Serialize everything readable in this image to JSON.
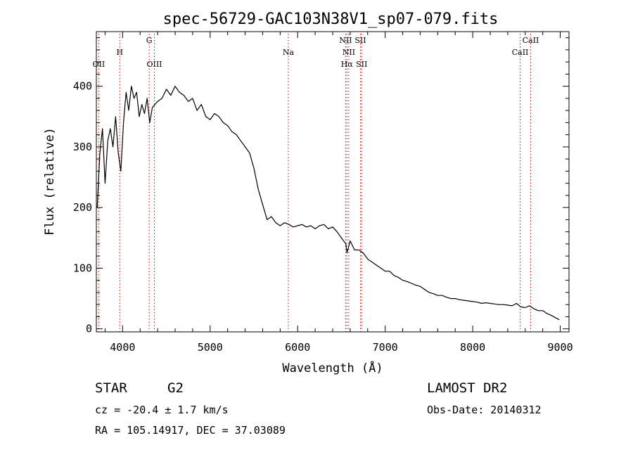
{
  "chart_data": {
    "type": "line",
    "title": "spec-56729-GAC103N38V1_sp07-079.fits",
    "xlabel": "Wavelength (Å)",
    "ylabel": "Flux (relative)",
    "xlim": [
      3700,
      9100
    ],
    "ylim": [
      -5,
      490
    ],
    "xticks": [
      4000,
      5000,
      6000,
      7000,
      8000,
      9000
    ],
    "yticks": [
      0,
      100,
      200,
      300,
      400
    ],
    "grid": false,
    "line_color": "#000000",
    "marker_color": "#cc0000",
    "series": [
      {
        "x": [
          3710,
          3740,
          3770,
          3800,
          3830,
          3860,
          3890,
          3920,
          3950,
          3980,
          4010,
          4040,
          4070,
          4100,
          4130,
          4160,
          4190,
          4220,
          4250,
          4280,
          4310,
          4340,
          4370,
          4400,
          4450,
          4500,
          4550,
          4600,
          4650,
          4700,
          4750,
          4800,
          4850,
          4900,
          4950,
          5000,
          5050,
          5100,
          5150,
          5200,
          5250,
          5300,
          5350,
          5400,
          5450,
          5500,
          5550,
          5600,
          5650,
          5700,
          5750,
          5800,
          5850,
          5900,
          5950,
          6000,
          6050,
          6100,
          6150,
          6200,
          6250,
          6300,
          6350,
          6400,
          6450,
          6500,
          6550,
          6563,
          6600,
          6650,
          6700,
          6750,
          6800,
          6850,
          6900,
          6950,
          7000,
          7050,
          7100,
          7150,
          7200,
          7250,
          7300,
          7350,
          7400,
          7450,
          7500,
          7550,
          7600,
          7650,
          7700,
          7750,
          7800,
          7850,
          7900,
          7950,
          8000,
          8050,
          8100,
          8150,
          8200,
          8250,
          8300,
          8350,
          8400,
          8450,
          8500,
          8550,
          8600,
          8650,
          8700,
          8750,
          8800,
          8850,
          8900,
          8950,
          8990
        ],
        "y": [
          200,
          290,
          330,
          240,
          310,
          330,
          300,
          350,
          290,
          260,
          340,
          390,
          360,
          400,
          380,
          390,
          350,
          370,
          355,
          380,
          340,
          365,
          370,
          375,
          380,
          395,
          385,
          400,
          390,
          385,
          375,
          380,
          360,
          370,
          350,
          345,
          355,
          350,
          340,
          335,
          325,
          320,
          310,
          300,
          290,
          265,
          230,
          205,
          180,
          185,
          175,
          170,
          175,
          172,
          168,
          170,
          172,
          168,
          170,
          165,
          170,
          172,
          165,
          168,
          160,
          150,
          140,
          125,
          145,
          130,
          130,
          125,
          115,
          110,
          105,
          100,
          95,
          95,
          88,
          85,
          80,
          78,
          75,
          72,
          70,
          65,
          60,
          58,
          55,
          55,
          52,
          50,
          50,
          48,
          47,
          46,
          45,
          44,
          42,
          43,
          42,
          41,
          40,
          40,
          39,
          38,
          42,
          36,
          35,
          38,
          33,
          30,
          30,
          25,
          22,
          18,
          15
        ]
      }
    ],
    "line_markers": [
      {
        "label": "OII",
        "x": 3727,
        "tier": 0
      },
      {
        "label": "H",
        "x": 3968,
        "tier": 1
      },
      {
        "label": "G",
        "x": 4304,
        "tier": 2
      },
      {
        "label": "OIII",
        "x": 4363,
        "tier": 0
      },
      {
        "label": "Na",
        "x": 5893,
        "tier": 1
      },
      {
        "label": "NII",
        "x": 6548,
        "tier": 2
      },
      {
        "label": "NII",
        "x": 6584,
        "tier": 1
      },
      {
        "label": "Hα",
        "x": 6563,
        "tier": 0
      },
      {
        "label": "SII",
        "x": 6717,
        "tier": 2
      },
      {
        "label": "SII",
        "x": 6731,
        "tier": 0
      },
      {
        "label": "CaII",
        "x": 8542,
        "tier": 1
      },
      {
        "label": "CaII",
        "x": 8662,
        "tier": 2
      }
    ]
  },
  "info": {
    "object_class": "STAR",
    "subclass": "G2",
    "redshift": "cz = -20.4 ± 1.7 km/s",
    "coords": "RA = 105.14917, DEC =  37.03089",
    "survey": "LAMOST DR2",
    "obs_date": "Obs-Date: 20140312"
  }
}
